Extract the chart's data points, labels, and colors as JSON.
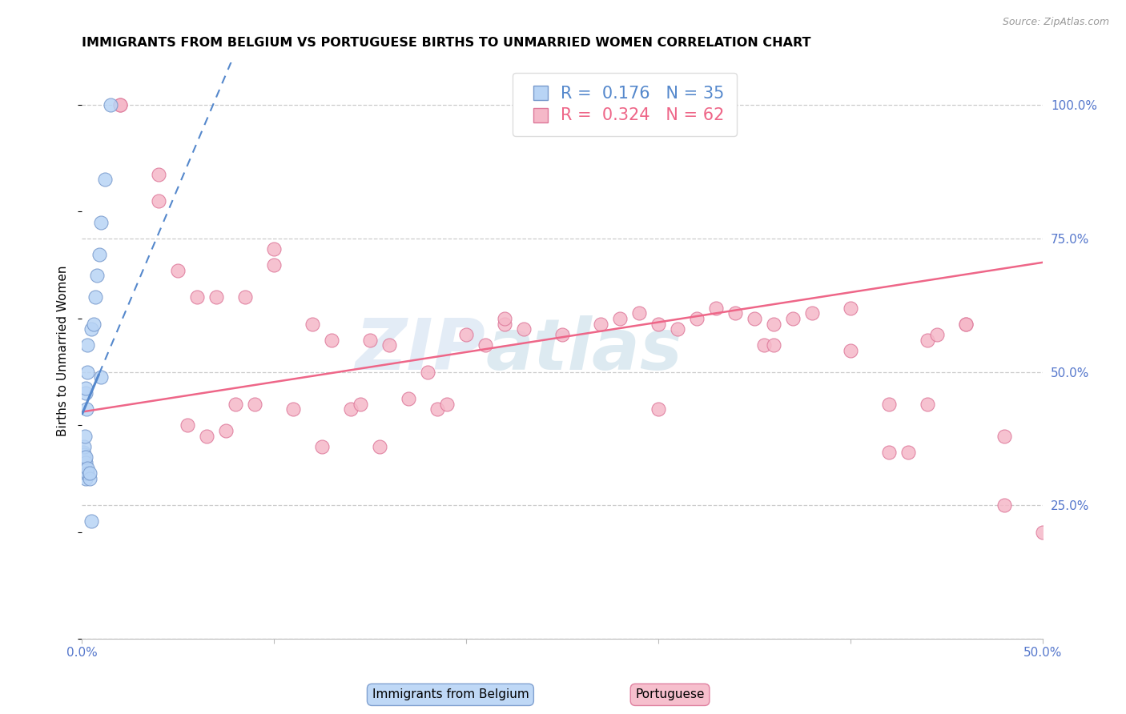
{
  "title": "IMMIGRANTS FROM BELGIUM VS PORTUGUESE BIRTHS TO UNMARRIED WOMEN CORRELATION CHART",
  "source": "Source: ZipAtlas.com",
  "ylabel": "Births to Unmarried Women",
  "x_min": 0.0,
  "x_max": 0.5,
  "y_min": 0.0,
  "y_max": 1.08,
  "grid_color": "#cccccc",
  "background_color": "#ffffff",
  "blue_fill": "#b8d4f5",
  "blue_edge": "#7799cc",
  "blue_line_color": "#5588cc",
  "pink_fill": "#f5b8c8",
  "pink_edge": "#dd7799",
  "pink_line_color": "#ee6688",
  "legend_R_blue": "0.176",
  "legend_N_blue": "35",
  "legend_R_pink": "0.324",
  "legend_N_pink": "62",
  "tick_color": "#5577cc",
  "blue_x": [
    0.0005,
    0.0005,
    0.0007,
    0.0008,
    0.001,
    0.001,
    0.001,
    0.001,
    0.001,
    0.001,
    0.0012,
    0.0015,
    0.002,
    0.002,
    0.002,
    0.002,
    0.002,
    0.002,
    0.0025,
    0.003,
    0.003,
    0.003,
    0.003,
    0.004,
    0.004,
    0.005,
    0.005,
    0.006,
    0.007,
    0.008,
    0.009,
    0.01,
    0.01,
    0.012,
    0.015
  ],
  "blue_y": [
    0.33,
    0.345,
    0.335,
    0.35,
    0.315,
    0.32,
    0.325,
    0.33,
    0.34,
    0.345,
    0.36,
    0.38,
    0.3,
    0.31,
    0.33,
    0.34,
    0.46,
    0.47,
    0.43,
    0.31,
    0.32,
    0.5,
    0.55,
    0.3,
    0.31,
    0.58,
    0.22,
    0.59,
    0.64,
    0.68,
    0.72,
    0.49,
    0.78,
    0.86,
    1.0
  ],
  "pink_x": [
    0.02,
    0.02,
    0.04,
    0.04,
    0.05,
    0.055,
    0.06,
    0.065,
    0.07,
    0.075,
    0.08,
    0.085,
    0.09,
    0.1,
    0.1,
    0.11,
    0.12,
    0.125,
    0.13,
    0.14,
    0.145,
    0.15,
    0.155,
    0.16,
    0.17,
    0.18,
    0.185,
    0.19,
    0.2,
    0.21,
    0.22,
    0.23,
    0.25,
    0.27,
    0.28,
    0.29,
    0.3,
    0.31,
    0.32,
    0.33,
    0.34,
    0.35,
    0.355,
    0.36,
    0.37,
    0.38,
    0.4,
    0.4,
    0.42,
    0.43,
    0.44,
    0.445,
    0.46,
    0.48,
    0.22,
    0.3,
    0.36,
    0.42,
    0.44,
    0.46,
    0.48,
    0.5
  ],
  "pink_y": [
    1.0,
    1.0,
    0.87,
    0.82,
    0.69,
    0.4,
    0.64,
    0.38,
    0.64,
    0.39,
    0.44,
    0.64,
    0.44,
    0.73,
    0.7,
    0.43,
    0.59,
    0.36,
    0.56,
    0.43,
    0.44,
    0.56,
    0.36,
    0.55,
    0.45,
    0.5,
    0.43,
    0.44,
    0.57,
    0.55,
    0.59,
    0.58,
    0.57,
    0.59,
    0.6,
    0.61,
    0.59,
    0.58,
    0.6,
    0.62,
    0.61,
    0.6,
    0.55,
    0.59,
    0.6,
    0.61,
    0.62,
    0.54,
    0.44,
    0.35,
    0.56,
    0.57,
    0.59,
    0.38,
    0.6,
    0.43,
    0.55,
    0.35,
    0.44,
    0.59,
    0.25,
    0.2
  ]
}
